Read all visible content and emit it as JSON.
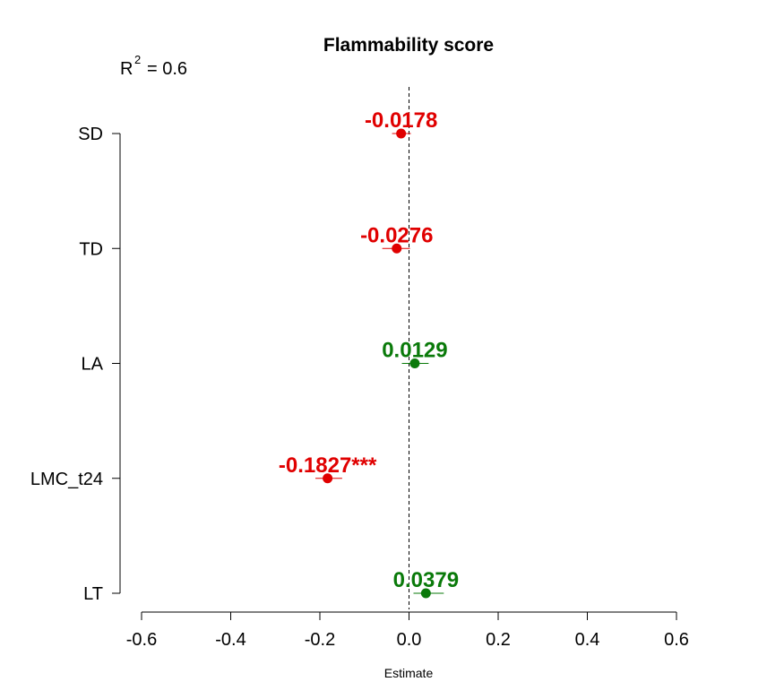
{
  "chart_data": {
    "type": "scatter",
    "title": "Flammability score",
    "xlabel": "Estimate",
    "ylabel": "",
    "xlim": [
      -0.6,
      0.6
    ],
    "xticks": [
      "-0.6",
      "-0.4",
      "-0.2",
      "0.0",
      "0.2",
      "0.4",
      "0.6"
    ],
    "r2": {
      "label": "R",
      "superscript": "2",
      "value": "= 0.6"
    },
    "reference_line": {
      "x": 0,
      "style": "dashed"
    },
    "colors": {
      "negative": "#e00000",
      "positive": "#0a7a0a",
      "axis": "#000000"
    },
    "points": [
      {
        "name": "SD",
        "estimate": -0.0178,
        "ci_low": -0.038,
        "ci_high": 0.004,
        "label": "-0.0178",
        "sign": "negative"
      },
      {
        "name": "TD",
        "estimate": -0.0276,
        "ci_low": -0.06,
        "ci_high": 0.002,
        "label": "-0.0276",
        "sign": "negative"
      },
      {
        "name": "LA",
        "estimate": 0.0129,
        "ci_low": -0.016,
        "ci_high": 0.044,
        "label": "0.0129",
        "sign": "positive"
      },
      {
        "name": "LMC_t24",
        "estimate": -0.1827,
        "ci_low": -0.21,
        "ci_high": -0.15,
        "label": "-0.1827***",
        "sign": "negative"
      },
      {
        "name": "LT",
        "estimate": 0.0379,
        "ci_low": 0.01,
        "ci_high": 0.078,
        "label": "0.0379",
        "sign": "positive"
      }
    ]
  }
}
